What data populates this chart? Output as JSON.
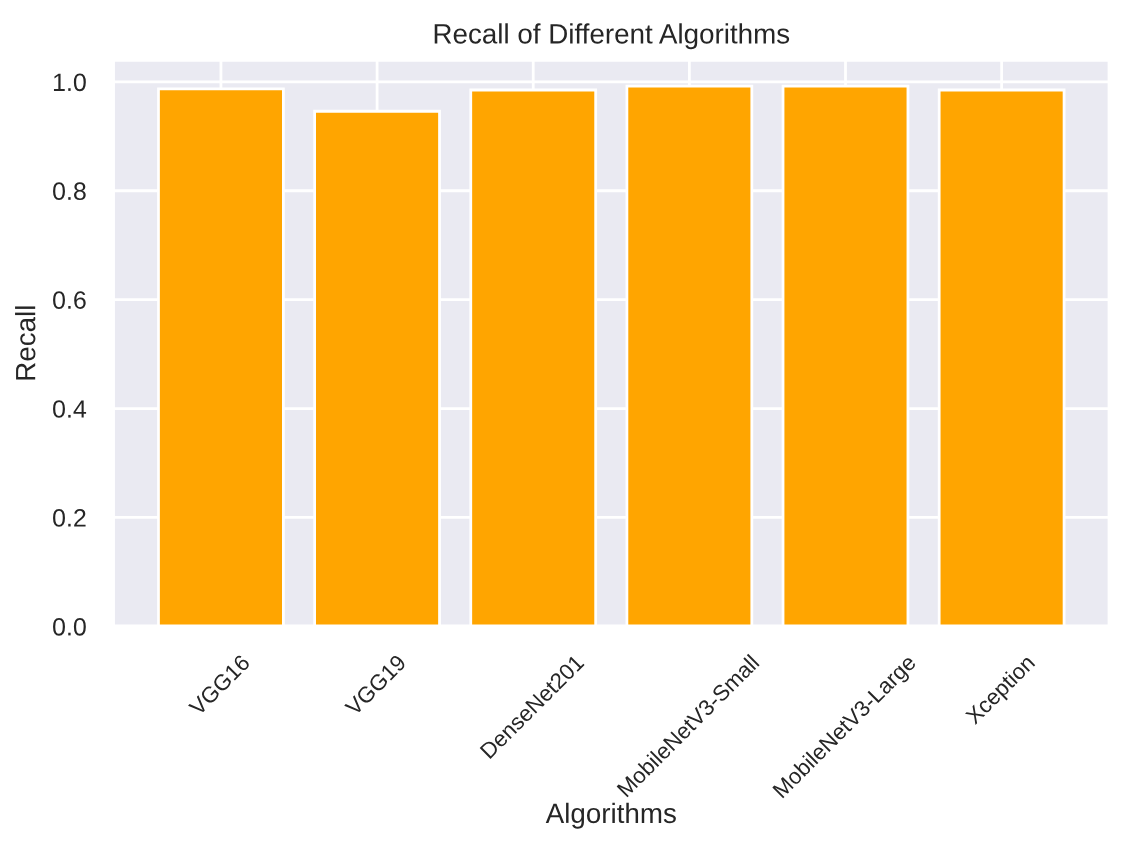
{
  "chart_data": {
    "type": "bar",
    "title": "Recall of Different Algorithms",
    "xlabel": "Algorithms",
    "ylabel": "Recall",
    "categories": [
      "VGG16",
      "VGG19",
      "DenseNet201",
      "MobileNetV3-Small",
      "MobileNetV3-Large",
      "Xception"
    ],
    "values": [
      0.987,
      0.946,
      0.985,
      0.992,
      0.992,
      0.985
    ],
    "color": "#ffa500",
    "ylim": [
      0,
      1.04
    ],
    "yticks": [
      {
        "value": 0,
        "label": "0.0"
      },
      0.2,
      0.4,
      0.6,
      0.8,
      {
        "value": 1,
        "label": "1.0"
      }
    ],
    "grid": true
  }
}
